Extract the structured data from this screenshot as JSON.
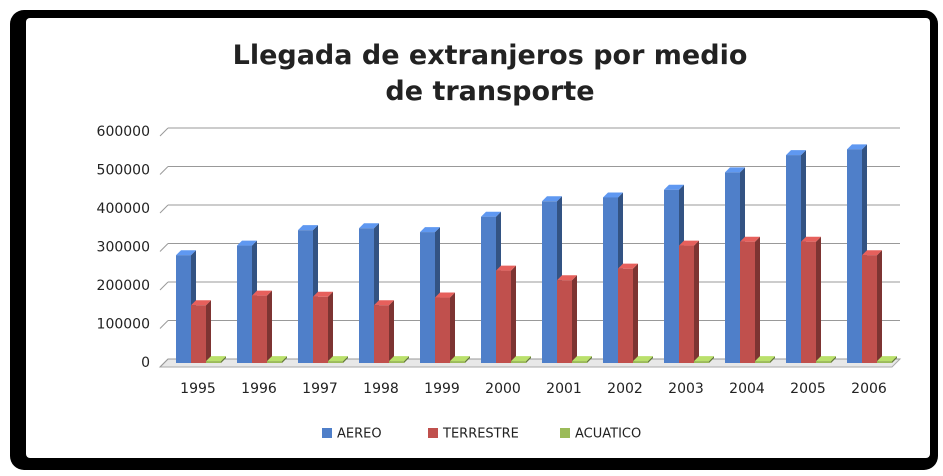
{
  "chart_data": {
    "type": "bar3d",
    "title": "Llegada de extranjeros por medio de transporte",
    "categories": [
      "1995",
      "1996",
      "1997",
      "1998",
      "1999",
      "2000",
      "2001",
      "2002",
      "2003",
      "2004",
      "2005",
      "2006"
    ],
    "series": [
      {
        "name": "AEREO",
        "color": "#4f7fc9",
        "values": [
          280000,
          305000,
          345000,
          350000,
          340000,
          380000,
          420000,
          430000,
          450000,
          495000,
          540000,
          555000
        ]
      },
      {
        "name": "TERRESTRE",
        "color": "#c0504d",
        "values": [
          150000,
          175000,
          172000,
          150000,
          170000,
          240000,
          215000,
          245000,
          305000,
          315000,
          315000,
          280000
        ]
      },
      {
        "name": "ACUATICO",
        "color": "#9bbb59",
        "values": [
          5000,
          5000,
          5000,
          5000,
          5000,
          5000,
          5000,
          5000,
          5000,
          5000,
          5000,
          5000
        ]
      }
    ],
    "ylim": [
      0,
      600000
    ],
    "yticks": [
      0,
      100000,
      200000,
      300000,
      400000,
      500000,
      600000
    ],
    "grid": true,
    "legend": "bottom"
  }
}
